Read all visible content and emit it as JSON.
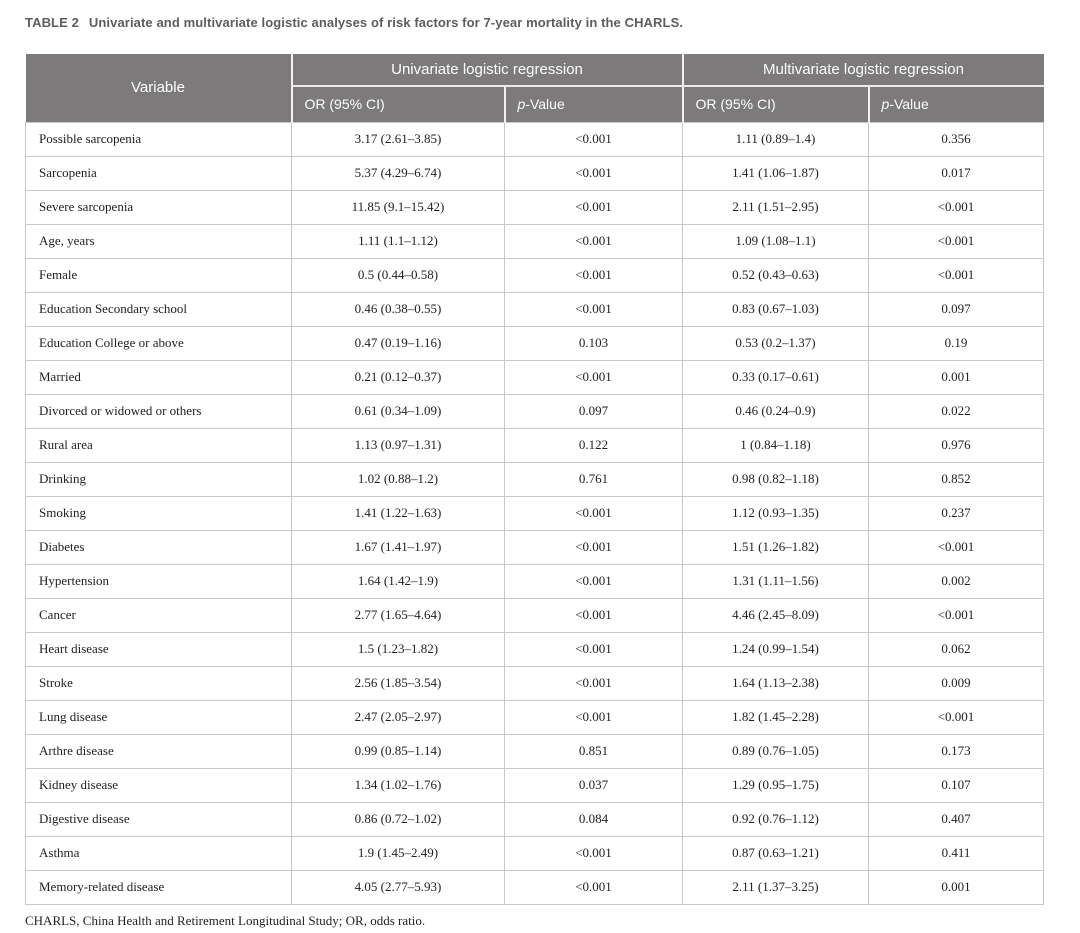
{
  "caption": {
    "label": "TABLE 2",
    "text": "Univariate and multivariate logistic analyses of risk factors for 7-year mortality in the CHARLS."
  },
  "table": {
    "variable_header": "Variable",
    "group_headers": [
      "Univariate logistic regression",
      "Multivariate logistic regression"
    ],
    "or_header": "OR (95% CI)",
    "p_header_italic": "p",
    "p_header_rest": "-Value",
    "rows": [
      {
        "variable": "Possible sarcopenia",
        "uni_or": "3.17 (2.61–3.85)",
        "uni_p": "<0.001",
        "multi_or": "1.11 (0.89–1.4)",
        "multi_p": "0.356"
      },
      {
        "variable": "Sarcopenia",
        "uni_or": "5.37 (4.29–6.74)",
        "uni_p": "<0.001",
        "multi_or": "1.41 (1.06–1.87)",
        "multi_p": "0.017"
      },
      {
        "variable": "Severe sarcopenia",
        "uni_or": "11.85 (9.1–15.42)",
        "uni_p": "<0.001",
        "multi_or": "2.11 (1.51–2.95)",
        "multi_p": "<0.001"
      },
      {
        "variable": "Age, years",
        "uni_or": "1.11 (1.1–1.12)",
        "uni_p": "<0.001",
        "multi_or": "1.09 (1.08–1.1)",
        "multi_p": "<0.001"
      },
      {
        "variable": "Female",
        "uni_or": "0.5 (0.44–0.58)",
        "uni_p": "<0.001",
        "multi_or": "0.52 (0.43–0.63)",
        "multi_p": "<0.001"
      },
      {
        "variable": "Education Secondary school",
        "uni_or": "0.46 (0.38–0.55)",
        "uni_p": "<0.001",
        "multi_or": "0.83 (0.67–1.03)",
        "multi_p": "0.097"
      },
      {
        "variable": "Education College or above",
        "uni_or": "0.47 (0.19–1.16)",
        "uni_p": "0.103",
        "multi_or": "0.53 (0.2–1.37)",
        "multi_p": "0.19"
      },
      {
        "variable": "Married",
        "uni_or": "0.21 (0.12–0.37)",
        "uni_p": "<0.001",
        "multi_or": "0.33 (0.17–0.61)",
        "multi_p": "0.001"
      },
      {
        "variable": "Divorced or widowed or others",
        "uni_or": "0.61 (0.34–1.09)",
        "uni_p": "0.097",
        "multi_or": "0.46 (0.24–0.9)",
        "multi_p": "0.022"
      },
      {
        "variable": "Rural area",
        "uni_or": "1.13 (0.97–1.31)",
        "uni_p": "0.122",
        "multi_or": "1 (0.84–1.18)",
        "multi_p": "0.976"
      },
      {
        "variable": "Drinking",
        "uni_or": "1.02 (0.88–1.2)",
        "uni_p": "0.761",
        "multi_or": "0.98 (0.82–1.18)",
        "multi_p": "0.852"
      },
      {
        "variable": "Smoking",
        "uni_or": "1.41 (1.22–1.63)",
        "uni_p": "<0.001",
        "multi_or": "1.12 (0.93–1.35)",
        "multi_p": "0.237"
      },
      {
        "variable": "Diabetes",
        "uni_or": "1.67 (1.41–1.97)",
        "uni_p": "<0.001",
        "multi_or": "1.51 (1.26–1.82)",
        "multi_p": "<0.001"
      },
      {
        "variable": "Hypertension",
        "uni_or": "1.64 (1.42–1.9)",
        "uni_p": "<0.001",
        "multi_or": "1.31 (1.11–1.56)",
        "multi_p": "0.002"
      },
      {
        "variable": "Cancer",
        "uni_or": "2.77 (1.65–4.64)",
        "uni_p": "<0.001",
        "multi_or": "4.46 (2.45–8.09)",
        "multi_p": "<0.001"
      },
      {
        "variable": "Heart disease",
        "uni_or": "1.5 (1.23–1.82)",
        "uni_p": "<0.001",
        "multi_or": "1.24 (0.99–1.54)",
        "multi_p": "0.062"
      },
      {
        "variable": "Stroke",
        "uni_or": "2.56 (1.85–3.54)",
        "uni_p": "<0.001",
        "multi_or": "1.64 (1.13–2.38)",
        "multi_p": "0.009"
      },
      {
        "variable": "Lung disease",
        "uni_or": "2.47 (2.05–2.97)",
        "uni_p": "<0.001",
        "multi_or": "1.82 (1.45–2.28)",
        "multi_p": "<0.001"
      },
      {
        "variable": "Arthre disease",
        "uni_or": "0.99 (0.85–1.14)",
        "uni_p": "0.851",
        "multi_or": "0.89 (0.76–1.05)",
        "multi_p": "0.173"
      },
      {
        "variable": "Kidney disease",
        "uni_or": "1.34 (1.02–1.76)",
        "uni_p": "0.037",
        "multi_or": "1.29 (0.95–1.75)",
        "multi_p": "0.107"
      },
      {
        "variable": "Digestive disease",
        "uni_or": "0.86 (0.72–1.02)",
        "uni_p": "0.084",
        "multi_or": "0.92 (0.76–1.12)",
        "multi_p": "0.407"
      },
      {
        "variable": "Asthma",
        "uni_or": "1.9 (1.45–2.49)",
        "uni_p": "<0.001",
        "multi_or": "0.87 (0.63–1.21)",
        "multi_p": "0.411"
      },
      {
        "variable": "Memory-related disease",
        "uni_or": "4.05 (2.77–5.93)",
        "uni_p": "<0.001",
        "multi_or": "2.11 (1.37–3.25)",
        "multi_p": "0.001"
      }
    ]
  },
  "footnote": "CHARLS, China Health and Retirement Longitudinal Study; OR, odds ratio.",
  "colors": {
    "header_bg": "#7c7a7a",
    "header_text": "#ffffff",
    "border": "#c8c8c8",
    "caption_text": "#5d5d5d",
    "body_text": "#1f1f1f"
  }
}
